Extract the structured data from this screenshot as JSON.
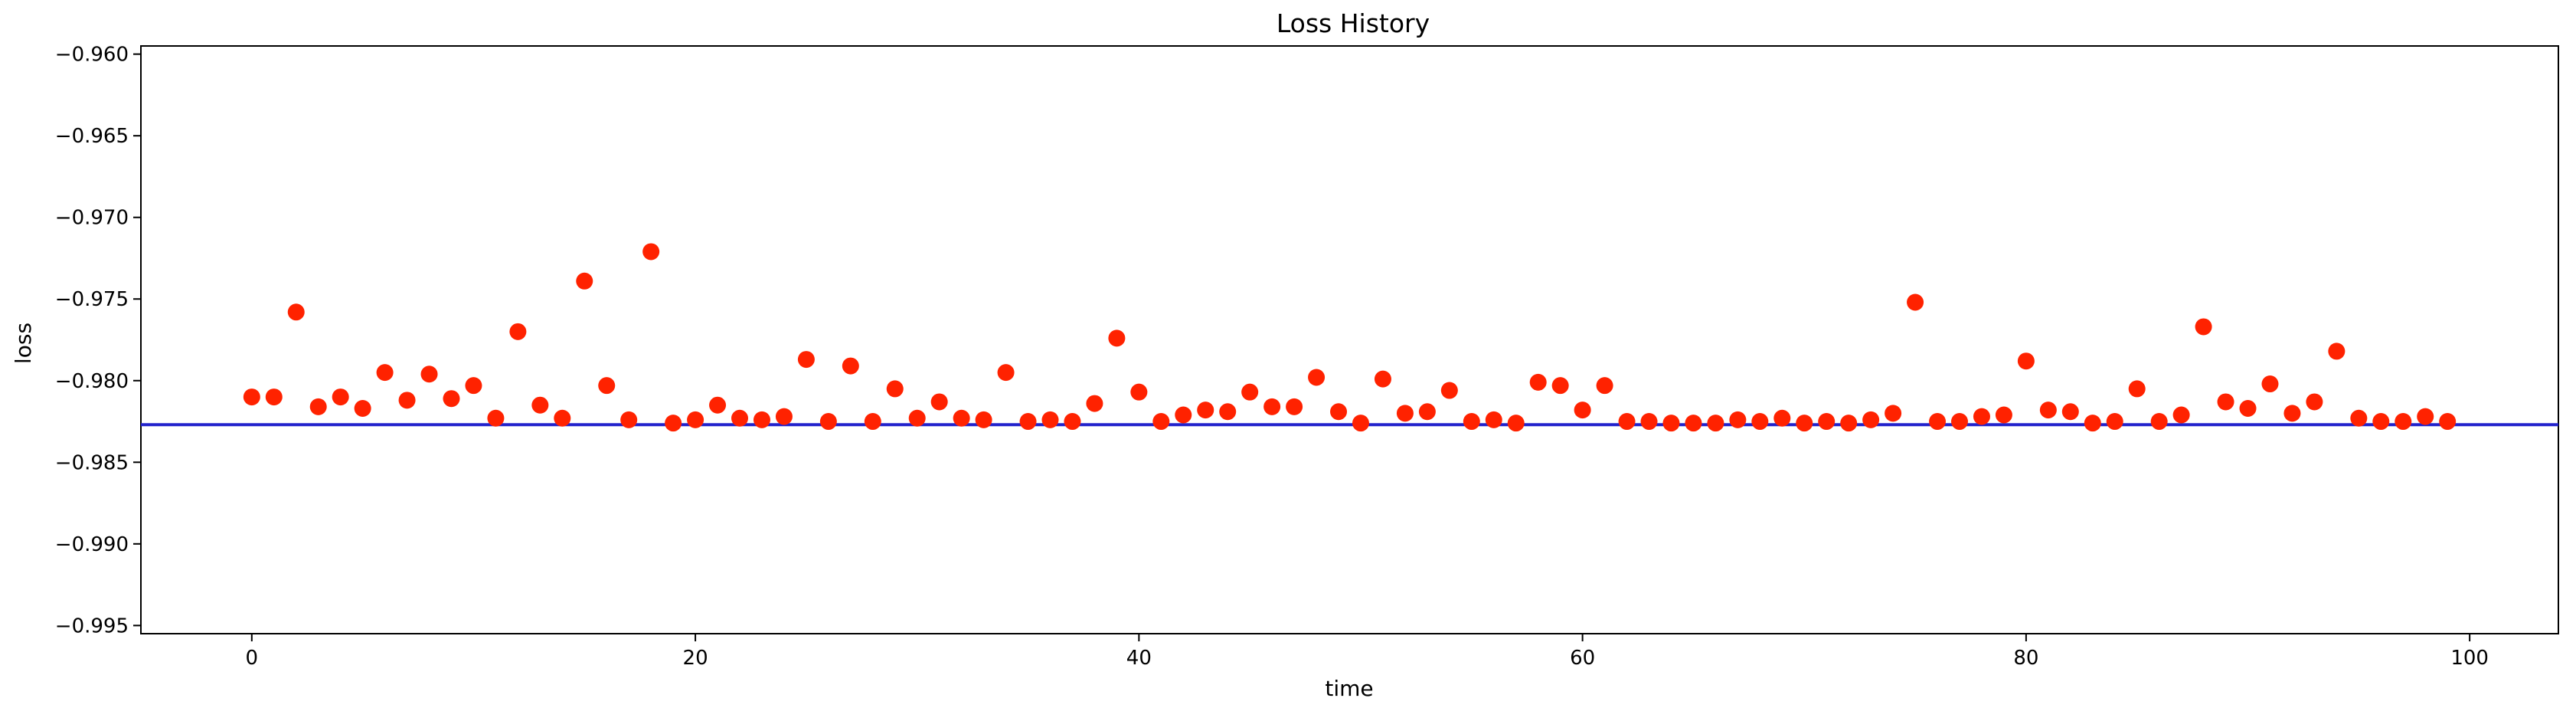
{
  "chart_data": {
    "type": "scatter",
    "title": "Loss History",
    "xlabel": "time",
    "ylabel": "loss",
    "xlim": [
      -5,
      104
    ],
    "ylim": [
      -0.9955,
      -0.9595
    ],
    "xticks": [
      0,
      20,
      40,
      60,
      80,
      100
    ],
    "xtick_labels": [
      "0",
      "20",
      "40",
      "60",
      "80",
      "100"
    ],
    "yticks": [
      -0.96,
      -0.965,
      -0.97,
      -0.975,
      -0.98,
      -0.985,
      -0.99,
      -0.995
    ],
    "ytick_labels": [
      "−0.960",
      "−0.965",
      "−0.970",
      "−0.975",
      "−0.980",
      "−0.985",
      "−0.990",
      "−0.995"
    ],
    "grid": false,
    "legend": "none",
    "marker_color": "#ff2200",
    "hline": {
      "y": -0.9827,
      "color": "#2222cc"
    },
    "series": [
      {
        "x": [
          0,
          1,
          2,
          3,
          4,
          5,
          6,
          7,
          8,
          9,
          10,
          11,
          12,
          13,
          14,
          15,
          16,
          17,
          18,
          19,
          20,
          21,
          22,
          23,
          24,
          25,
          26,
          27,
          28,
          29,
          30,
          31,
          32,
          33,
          34,
          35,
          36,
          37,
          38,
          39,
          40,
          41,
          42,
          43,
          44,
          45,
          46,
          47,
          48,
          49,
          50,
          51,
          52,
          53,
          54,
          55,
          56,
          57,
          58,
          59,
          60,
          61,
          62,
          63,
          64,
          65,
          66,
          67,
          68,
          69,
          70,
          71,
          72,
          73,
          74,
          75,
          76,
          77,
          78,
          79,
          80,
          81,
          82,
          83,
          84,
          85,
          86,
          87,
          88,
          89,
          90,
          91,
          92,
          93,
          94,
          95,
          96,
          97,
          98,
          99
        ],
        "y": [
          -0.981,
          -0.981,
          -0.9758,
          -0.9816,
          -0.981,
          -0.9817,
          -0.9795,
          -0.9812,
          -0.9796,
          -0.9811,
          -0.9803,
          -0.9823,
          -0.977,
          -0.9815,
          -0.9823,
          -0.9739,
          -0.9803,
          -0.9824,
          -0.9721,
          -0.9826,
          -0.9824,
          -0.9815,
          -0.9823,
          -0.9824,
          -0.9822,
          -0.9787,
          -0.9825,
          -0.9791,
          -0.9825,
          -0.9805,
          -0.9823,
          -0.9813,
          -0.9823,
          -0.9824,
          -0.9795,
          -0.9825,
          -0.9824,
          -0.9825,
          -0.9814,
          -0.9774,
          -0.9807,
          -0.9825,
          -0.9821,
          -0.9818,
          -0.9819,
          -0.9807,
          -0.9816,
          -0.9816,
          -0.9798,
          -0.9819,
          -0.9826,
          -0.9799,
          -0.982,
          -0.9819,
          -0.9806,
          -0.9825,
          -0.9824,
          -0.9826,
          -0.9801,
          -0.9803,
          -0.9818,
          -0.9803,
          -0.9825,
          -0.9825,
          -0.9826,
          -0.9826,
          -0.9826,
          -0.9824,
          -0.9825,
          -0.9823,
          -0.9826,
          -0.9825,
          -0.9826,
          -0.9824,
          -0.982,
          -0.9752,
          -0.9825,
          -0.9825,
          -0.9822,
          -0.9821,
          -0.9788,
          -0.9818,
          -0.9819,
          -0.9826,
          -0.9825,
          -0.9805,
          -0.9825,
          -0.9821,
          -0.9767,
          -0.9813,
          -0.9817,
          -0.9802,
          -0.982,
          -0.9813,
          -0.9782,
          -0.9823,
          -0.9825,
          -0.9825,
          -0.9822,
          -0.9825
        ]
      }
    ]
  }
}
